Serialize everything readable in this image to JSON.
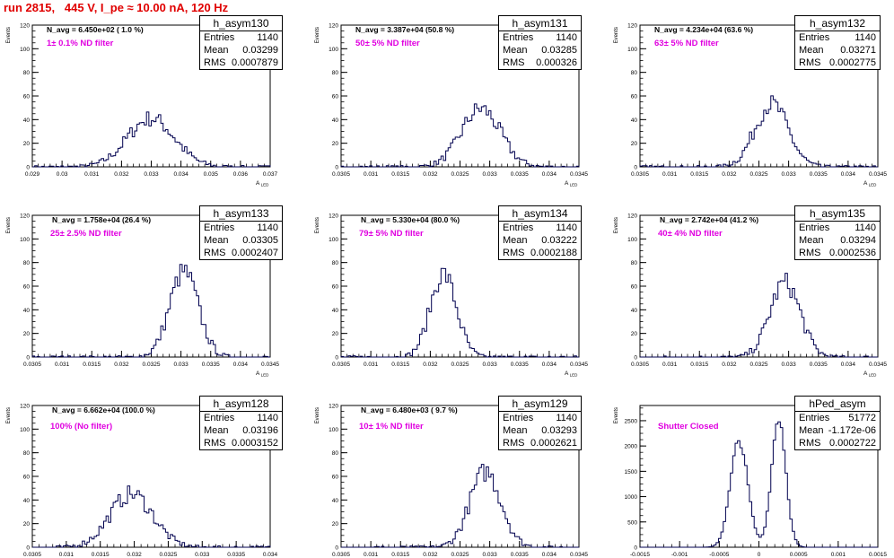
{
  "title": "run 2815,   445 V, I_pe ≈ 10.00 nA, 120 Hz",
  "colors": {
    "title": "#e00000",
    "line": "#00004f",
    "filter": "#e000e0"
  },
  "axis_labels": {
    "ylabel": "Events",
    "xlabel": "A",
    "xlabel_sub": "LED"
  },
  "chart_data": [
    {
      "type": "bar",
      "name": "h_asym130",
      "stats": {
        "entries_label": "Entries",
        "entries": "1140",
        "mean_label": "Mean",
        "mean": "0.03299",
        "rms_label": "RMS",
        "rms": "0.0007879"
      },
      "navg": "N_avg = 6.450e+02 ( 1.0 %)",
      "filter": "1± 0.1% ND filter",
      "xlim": [
        0.029,
        0.037
      ],
      "ylim": [
        0,
        120
      ],
      "xticks": [
        0.029,
        0.03,
        0.031,
        0.032,
        0.033,
        0.034,
        0.035,
        0.036,
        0.037
      ],
      "xtick_labels": [
        "0.029",
        "0.03",
        "0.031",
        "0.032",
        "0.033",
        "0.034",
        "0.035",
        "0.036",
        "0.037"
      ],
      "yticks": [
        0,
        20,
        40,
        60,
        80,
        100,
        120
      ],
      "mean": 0.03299,
      "rms": 0.0007879,
      "entries": 1140,
      "peak": 50
    },
    {
      "type": "bar",
      "name": "h_asym131",
      "stats": {
        "entries_label": "Entries",
        "entries": "1140",
        "mean_label": "Mean",
        "mean": "0.03285",
        "rms_label": "RMS",
        "rms": "0.000326"
      },
      "navg": "N_avg = 3.387e+04 (50.8 %)",
      "filter": "50± 5% ND filter",
      "xlim": [
        0.0305,
        0.0345
      ],
      "ylim": [
        0,
        120
      ],
      "xticks": [
        0.0305,
        0.031,
        0.0315,
        0.032,
        0.0325,
        0.033,
        0.0335,
        0.034,
        0.0345
      ],
      "xtick_labels": [
        "0.0305",
        "0.031",
        "0.0315",
        "0.032",
        "0.0325",
        "0.033",
        "0.0335",
        "0.034",
        "0.0345"
      ],
      "yticks": [
        0,
        20,
        40,
        60,
        80,
        100,
        120
      ],
      "mean": 0.03285,
      "rms": 0.000326,
      "entries": 1140,
      "peak": 60
    },
    {
      "type": "bar",
      "name": "h_asym132",
      "stats": {
        "entries_label": "Entries",
        "entries": "1140",
        "mean_label": "Mean",
        "mean": "0.03271",
        "rms_label": "RMS",
        "rms": "0.0002775"
      },
      "navg": "N_avg = 4.234e+04 (63.6 %)",
      "filter": "63± 5% ND filter",
      "xlim": [
        0.0305,
        0.0345
      ],
      "ylim": [
        0,
        120
      ],
      "xticks": [
        0.0305,
        0.031,
        0.0315,
        0.032,
        0.0325,
        0.033,
        0.0335,
        0.034,
        0.0345
      ],
      "xtick_labels": [
        "0.0305",
        "0.031",
        "0.0315",
        "0.032",
        "0.0325",
        "0.033",
        "0.0335",
        "0.034",
        "0.0345"
      ],
      "yticks": [
        0,
        20,
        40,
        60,
        80,
        100,
        120
      ],
      "mean": 0.03271,
      "rms": 0.0002775,
      "entries": 1140,
      "peak": 65
    },
    {
      "type": "bar",
      "name": "h_asym133",
      "stats": {
        "entries_label": "Entries",
        "entries": "1140",
        "mean_label": "Mean",
        "mean": "0.03305",
        "rms_label": "RMS",
        "rms": "0.0002407"
      },
      "navg": "N_avg = 1.758e+04 (26.4 %)",
      "filter": "25± 2.5% ND filter",
      "xlim": [
        0.0305,
        0.0345
      ],
      "ylim": [
        0,
        120
      ],
      "xticks": [
        0.0305,
        0.031,
        0.0315,
        0.032,
        0.0325,
        0.033,
        0.0335,
        0.034,
        0.0345
      ],
      "xtick_labels": [
        "0.0305",
        "0.031",
        "0.0315",
        "0.032",
        "0.0325",
        "0.033",
        "0.0335",
        "0.034",
        "0.0345"
      ],
      "yticks": [
        0,
        20,
        40,
        60,
        80,
        100,
        120
      ],
      "mean": 0.03305,
      "rms": 0.0002407,
      "entries": 1140,
      "peak": 88
    },
    {
      "type": "bar",
      "name": "h_asym134",
      "stats": {
        "entries_label": "Entries",
        "entries": "1140",
        "mean_label": "Mean",
        "mean": "0.03222",
        "rms_label": "RMS",
        "rms": "0.0002188"
      },
      "navg": "N_avg = 5.330e+04 (80.0 %)",
      "filter": "79± 5% ND filter",
      "xlim": [
        0.0305,
        0.0345
      ],
      "ylim": [
        0,
        120
      ],
      "xticks": [
        0.0305,
        0.031,
        0.0315,
        0.032,
        0.0325,
        0.033,
        0.0335,
        0.034,
        0.0345
      ],
      "xtick_labels": [
        "0.0305",
        "0.031",
        "0.0315",
        "0.032",
        "0.0325",
        "0.033",
        "0.0335",
        "0.034",
        "0.0345"
      ],
      "yticks": [
        0,
        20,
        40,
        60,
        80,
        100,
        120
      ],
      "mean": 0.03222,
      "rms": 0.0002188,
      "entries": 1140,
      "peak": 86
    },
    {
      "type": "bar",
      "name": "h_asym135",
      "stats": {
        "entries_label": "Entries",
        "entries": "1140",
        "mean_label": "Mean",
        "mean": "0.03294",
        "rms_label": "RMS",
        "rms": "0.0002536"
      },
      "navg": "N_avg = 2.742e+04 (41.2 %)",
      "filter": "40± 4% ND filter",
      "xlim": [
        0.0305,
        0.0345
      ],
      "ylim": [
        0,
        120
      ],
      "xticks": [
        0.0305,
        0.031,
        0.0315,
        0.032,
        0.0325,
        0.033,
        0.0335,
        0.034,
        0.0345
      ],
      "xtick_labels": [
        "0.0305",
        "0.031",
        "0.0315",
        "0.032",
        "0.0325",
        "0.033",
        "0.0335",
        "0.034",
        "0.0345"
      ],
      "yticks": [
        0,
        20,
        40,
        60,
        80,
        100,
        120
      ],
      "mean": 0.03294,
      "rms": 0.0002536,
      "entries": 1140,
      "peak": 77
    },
    {
      "type": "bar",
      "name": "h_asym128",
      "stats": {
        "entries_label": "Entries",
        "entries": "1140",
        "mean_label": "Mean",
        "mean": "0.03196",
        "rms_label": "RMS",
        "rms": "0.0003152"
      },
      "navg": "N_avg = 6.662e+04 (100.0 %)",
      "filter": "100% (No filter)",
      "xlim": [
        0.0305,
        0.034
      ],
      "ylim": [
        0,
        120
      ],
      "xticks": [
        0.0305,
        0.031,
        0.0315,
        0.032,
        0.0325,
        0.033,
        0.0335,
        0.034
      ],
      "xtick_labels": [
        "0.0305",
        "0.031",
        "0.0315",
        "0.032",
        "0.0325",
        "0.033",
        "0.0335",
        "0.034"
      ],
      "yticks": [
        0,
        20,
        40,
        60,
        80,
        100,
        120
      ],
      "mean": 0.03196,
      "rms": 0.0003152,
      "entries": 1140,
      "peak": 55
    },
    {
      "type": "bar",
      "name": "h_asym129",
      "stats": {
        "entries_label": "Entries",
        "entries": "1140",
        "mean_label": "Mean",
        "mean": "0.03293",
        "rms_label": "RMS",
        "rms": "0.0002621"
      },
      "navg": "N_avg = 6.480e+03 ( 9.7 %)",
      "filter": "10± 1% ND filter",
      "xlim": [
        0.0305,
        0.0345
      ],
      "ylim": [
        0,
        120
      ],
      "xticks": [
        0.0305,
        0.031,
        0.0315,
        0.032,
        0.0325,
        0.033,
        0.0335,
        0.034,
        0.0345
      ],
      "xtick_labels": [
        "0.0305",
        "0.031",
        "0.0315",
        "0.032",
        "0.0325",
        "0.033",
        "0.0335",
        "0.034",
        "0.0345"
      ],
      "yticks": [
        0,
        20,
        40,
        60,
        80,
        100,
        120
      ],
      "mean": 0.03293,
      "rms": 0.0002621,
      "entries": 1140,
      "peak": 78
    },
    {
      "type": "bar",
      "name": "hPed_asym",
      "stats": {
        "entries_label": "Entries",
        "entries": "51772",
        "mean_label": "Mean",
        "mean": "-1.172e-06",
        "rms_label": "RMS",
        "rms": "0.0002722"
      },
      "navg": "",
      "filter": "Shutter Closed",
      "xlim": [
        -0.0015,
        0.0015
      ],
      "ylim": [
        0,
        2800
      ],
      "xticks": [
        -0.0015,
        -0.001,
        -0.0005,
        0,
        0.0005,
        0.001,
        0.0015
      ],
      "xtick_labels": [
        "-0.0015",
        "-0.001",
        "-0.0005",
        "0",
        "0.0005",
        "0.001",
        "0.0015"
      ],
      "yticks": [
        0,
        500,
        1000,
        1500,
        2000,
        2500
      ],
      "bimodal": [
        {
          "mean": -0.00025,
          "sigma": 0.00011,
          "peak": 2100
        },
        {
          "mean": 0.00025,
          "sigma": 9e-05,
          "peak": 2550
        }
      ],
      "entries": 51772
    }
  ]
}
